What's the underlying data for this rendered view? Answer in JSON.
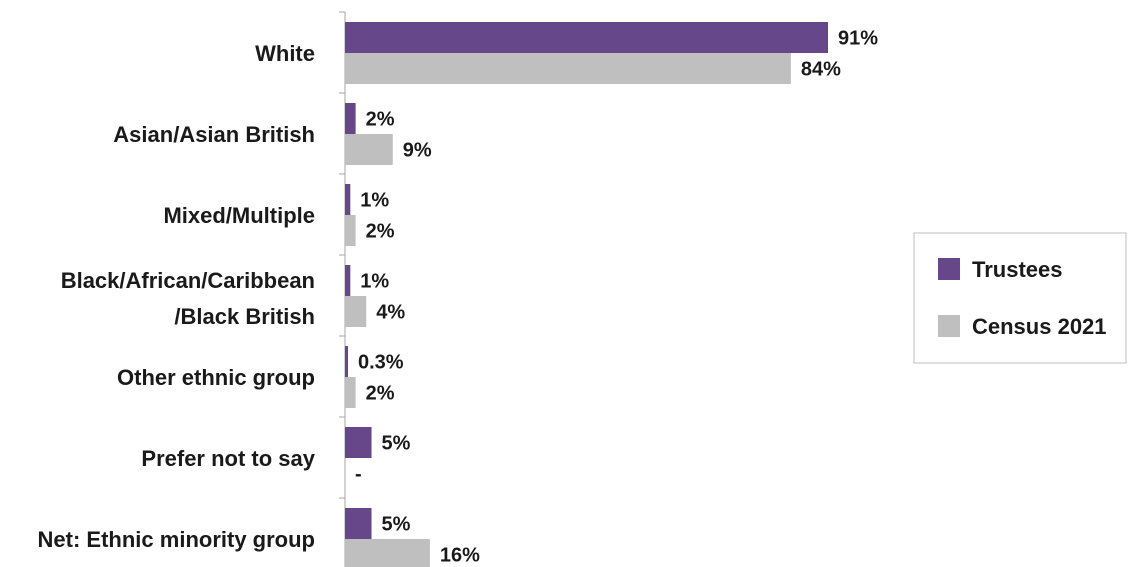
{
  "chart_data": {
    "type": "bar",
    "orientation": "horizontal",
    "categories": [
      [
        "White"
      ],
      [
        "Asian/Asian British"
      ],
      [
        "Mixed/Multiple"
      ],
      [
        "Black/African/Caribbean",
        "/Black British"
      ],
      [
        "Other ethnic group"
      ],
      [
        "Prefer not to say"
      ],
      [
        "Net: Ethnic minority group"
      ]
    ],
    "series": [
      {
        "name": "Trustees",
        "color": "#65478a",
        "values": [
          91,
          2,
          1,
          1,
          0.3,
          5,
          5
        ],
        "labels": [
          "91%",
          "2%",
          "1%",
          "1%",
          "0.3%",
          "5%",
          "5%"
        ]
      },
      {
        "name": "Census 2021",
        "color": "#bfbfbf",
        "values": [
          84,
          9,
          2,
          4,
          2,
          null,
          16
        ],
        "labels": [
          "84%",
          "9%",
          "2%",
          "4%",
          "2%",
          "-",
          "16%"
        ]
      }
    ],
    "xlim": [
      0,
      100
    ],
    "grid": false,
    "legend_position": "right"
  }
}
